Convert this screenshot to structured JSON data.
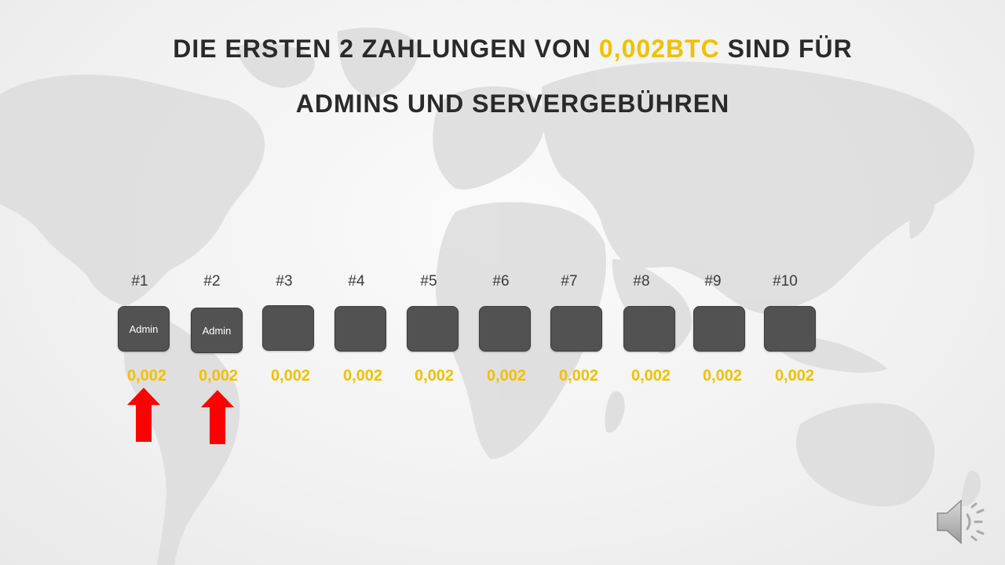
{
  "title": {
    "line1_before": "DIE ERSTEN 2 ZAHLUNGEN VON ",
    "line1_accent": "0,002BTC",
    "line1_after": " SIND FÜR",
    "line2": "ADMINS UND SERVERGEBÜHREN",
    "accent_color": "#f2c000"
  },
  "slots": [
    {
      "label": "#1",
      "box_text": "Admin",
      "amount": "0,002"
    },
    {
      "label": "#2",
      "box_text": "Admin",
      "amount": "0,002"
    },
    {
      "label": "#3",
      "box_text": "",
      "amount": "0,002"
    },
    {
      "label": "#4",
      "box_text": "",
      "amount": "0,002"
    },
    {
      "label": "#5",
      "box_text": "",
      "amount": "0,002"
    },
    {
      "label": "#6",
      "box_text": "",
      "amount": "0,002"
    },
    {
      "label": "#7",
      "box_text": "",
      "amount": "0,002"
    },
    {
      "label": "#8",
      "box_text": "",
      "amount": "0,002"
    },
    {
      "label": "#9",
      "box_text": "",
      "amount": "0,002"
    },
    {
      "label": "#10",
      "box_text": "",
      "amount": "0,002"
    }
  ],
  "arrows": {
    "color": "#ff0000",
    "icon": "up-arrow-icon",
    "slots_marked": [
      "#1",
      "#2"
    ]
  },
  "audio": {
    "icon": "speaker-icon"
  }
}
